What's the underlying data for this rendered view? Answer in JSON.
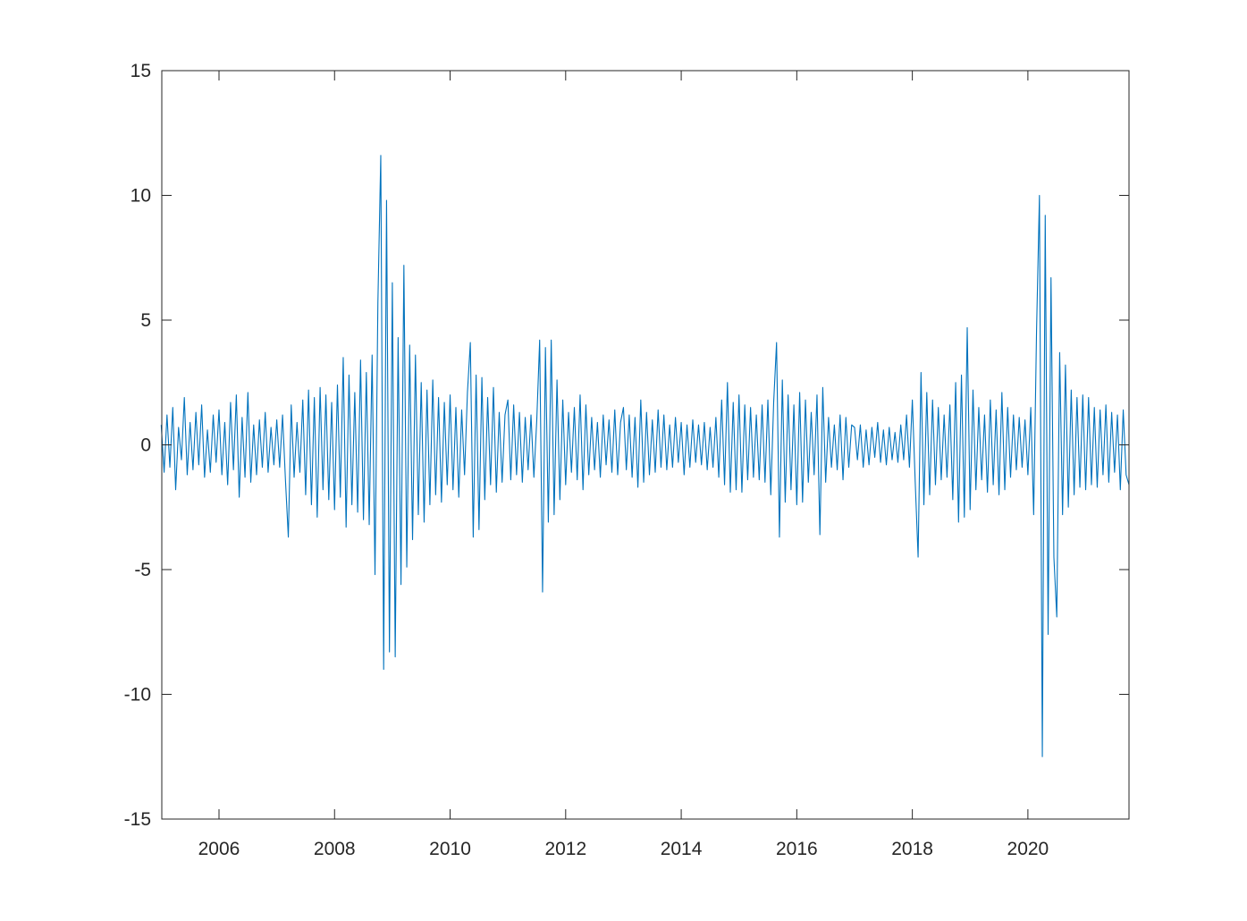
{
  "chart_data": {
    "type": "line",
    "x": [
      2005,
      2005.05,
      2005.1,
      2005.15,
      2005.2,
      2005.25,
      2005.3,
      2005.35,
      2005.4,
      2005.45,
      2005.5,
      2005.55,
      2005.6,
      2005.65,
      2005.7,
      2005.75,
      2005.8,
      2005.85,
      2005.9,
      2005.95,
      2006,
      2006.05,
      2006.1,
      2006.15,
      2006.2,
      2006.25,
      2006.3,
      2006.35,
      2006.4,
      2006.45,
      2006.5,
      2006.55,
      2006.6,
      2006.65,
      2006.7,
      2006.75,
      2006.8,
      2006.85,
      2006.9,
      2006.95,
      2007,
      2007.05,
      2007.1,
      2007.15,
      2007.2,
      2007.25,
      2007.3,
      2007.35,
      2007.4,
      2007.45,
      2007.5,
      2007.55,
      2007.6,
      2007.65,
      2007.7,
      2007.75,
      2007.8,
      2007.85,
      2007.9,
      2007.95,
      2008,
      2008.05,
      2008.1,
      2008.15,
      2008.2,
      2008.25,
      2008.3,
      2008.35,
      2008.4,
      2008.45,
      2008.5,
      2008.55,
      2008.6,
      2008.65,
      2008.7,
      2008.75,
      2008.8,
      2008.85,
      2008.9,
      2008.95,
      2009,
      2009.05,
      2009.1,
      2009.15,
      2009.2,
      2009.25,
      2009.3,
      2009.35,
      2009.4,
      2009.45,
      2009.5,
      2009.55,
      2009.6,
      2009.65,
      2009.7,
      2009.75,
      2009.8,
      2009.85,
      2009.9,
      2009.95,
      2010,
      2010.05,
      2010.1,
      2010.15,
      2010.2,
      2010.25,
      2010.3,
      2010.35,
      2010.4,
      2010.45,
      2010.5,
      2010.55,
      2010.6,
      2010.65,
      2010.7,
      2010.75,
      2010.8,
      2010.85,
      2010.9,
      2010.95,
      2011,
      2011.05,
      2011.1,
      2011.15,
      2011.2,
      2011.25,
      2011.3,
      2011.35,
      2011.4,
      2011.45,
      2011.5,
      2011.55,
      2011.6,
      2011.65,
      2011.7,
      2011.75,
      2011.8,
      2011.85,
      2011.9,
      2011.95,
      2012,
      2012.05,
      2012.1,
      2012.15,
      2012.2,
      2012.25,
      2012.3,
      2012.35,
      2012.4,
      2012.45,
      2012.5,
      2012.55,
      2012.6,
      2012.65,
      2012.7,
      2012.75,
      2012.8,
      2012.85,
      2012.9,
      2012.95,
      2013,
      2013.05,
      2013.1,
      2013.15,
      2013.2,
      2013.25,
      2013.3,
      2013.35,
      2013.4,
      2013.45,
      2013.5,
      2013.55,
      2013.6,
      2013.65,
      2013.7,
      2013.75,
      2013.8,
      2013.85,
      2013.9,
      2013.95,
      2014,
      2014.05,
      2014.1,
      2014.15,
      2014.2,
      2014.25,
      2014.3,
      2014.35,
      2014.4,
      2014.45,
      2014.5,
      2014.55,
      2014.6,
      2014.65,
      2014.7,
      2014.75,
      2014.8,
      2014.85,
      2014.9,
      2014.95,
      2015,
      2015.05,
      2015.1,
      2015.15,
      2015.2,
      2015.25,
      2015.3,
      2015.35,
      2015.4,
      2015.45,
      2015.5,
      2015.55,
      2015.6,
      2015.65,
      2015.7,
      2015.75,
      2015.8,
      2015.85,
      2015.9,
      2015.95,
      2016,
      2016.05,
      2016.1,
      2016.15,
      2016.2,
      2016.25,
      2016.3,
      2016.35,
      2016.4,
      2016.45,
      2016.5,
      2016.55,
      2016.6,
      2016.65,
      2016.7,
      2016.75,
      2016.8,
      2016.85,
      2016.9,
      2016.95,
      2017,
      2017.05,
      2017.1,
      2017.15,
      2017.2,
      2017.25,
      2017.3,
      2017.35,
      2017.4,
      2017.45,
      2017.5,
      2017.55,
      2017.6,
      2017.65,
      2017.7,
      2017.75,
      2017.8,
      2017.85,
      2017.9,
      2017.95,
      2018,
      2018.05,
      2018.1,
      2018.15,
      2018.2,
      2018.25,
      2018.3,
      2018.35,
      2018.4,
      2018.45,
      2018.5,
      2018.55,
      2018.6,
      2018.65,
      2018.7,
      2018.75,
      2018.8,
      2018.85,
      2018.9,
      2018.95,
      2019,
      2019.05,
      2019.1,
      2019.15,
      2019.2,
      2019.25,
      2019.3,
      2019.35,
      2019.4,
      2019.45,
      2019.5,
      2019.55,
      2019.6,
      2019.65,
      2019.7,
      2019.75,
      2019.8,
      2019.85,
      2019.9,
      2019.95,
      2020,
      2020.05,
      2020.1,
      2020.15,
      2020.2,
      2020.25,
      2020.3,
      2020.35,
      2020.4,
      2020.45,
      2020.5,
      2020.55,
      2020.6,
      2020.65,
      2020.7,
      2020.75,
      2020.8,
      2020.85,
      2020.9,
      2020.95,
      2021,
      2021.05,
      2021.1,
      2021.15,
      2021.2,
      2021.25,
      2021.3,
      2021.35,
      2021.4,
      2021.45,
      2021.5,
      2021.55,
      2021.6,
      2021.65,
      2021.7,
      2021.75
    ],
    "series": [
      {
        "color": "#0072bd",
        "values": [
          0.8,
          -1.1,
          1.2,
          -0.9,
          1.5,
          -1.8,
          0.7,
          -0.6,
          1.9,
          -1.2,
          0.9,
          -1.0,
          1.3,
          -0.8,
          1.6,
          -1.3,
          0.6,
          -1.1,
          1.2,
          -0.7,
          1.4,
          -1.2,
          0.9,
          -1.6,
          1.7,
          -1.0,
          2.0,
          -2.1,
          1.1,
          -1.3,
          2.1,
          -1.5,
          0.8,
          -1.2,
          1.0,
          -0.9,
          1.3,
          -1.1,
          0.7,
          -0.8,
          1.0,
          -0.9,
          1.2,
          -1.4,
          -3.7,
          1.6,
          -1.3,
          0.9,
          -1.1,
          1.8,
          -2.0,
          2.2,
          -2.4,
          1.9,
          -2.9,
          2.3,
          -1.8,
          2.0,
          -2.2,
          1.7,
          -2.6,
          2.4,
          -2.1,
          3.5,
          -3.3,
          2.8,
          -2.4,
          2.1,
          -2.7,
          3.4,
          -3.0,
          2.9,
          -3.2,
          3.6,
          -5.2,
          5.7,
          11.6,
          -9.0,
          9.8,
          -8.3,
          6.5,
          -8.5,
          4.3,
          -5.6,
          7.2,
          -4.9,
          4.0,
          -3.8,
          3.6,
          -2.8,
          2.5,
          -3.1,
          2.2,
          -2.4,
          2.6,
          -2.0,
          1.9,
          -2.3,
          1.7,
          -1.6,
          2.0,
          -1.8,
          1.5,
          -2.1,
          1.4,
          -1.2,
          2.1,
          4.1,
          -3.7,
          2.8,
          -3.4,
          2.7,
          -2.2,
          1.9,
          -1.6,
          2.3,
          -1.9,
          1.3,
          -1.5,
          1.2,
          1.8,
          -1.4,
          1.6,
          -1.2,
          1.3,
          -1.5,
          1.1,
          -1.0,
          1.2,
          -1.3,
          1.0,
          4.2,
          -5.9,
          3.9,
          -3.1,
          4.2,
          -2.8,
          2.6,
          -2.2,
          1.8,
          -1.6,
          1.3,
          -1.1,
          1.5,
          -1.4,
          2.0,
          -1.8,
          1.6,
          -1.2,
          1.1,
          -1.0,
          0.9,
          -1.3,
          1.2,
          -0.8,
          1.0,
          -1.1,
          1.4,
          -1.2,
          0.9,
          1.5,
          -1.0,
          1.2,
          -1.3,
          1.1,
          -1.7,
          1.8,
          -1.5,
          1.3,
          -1.2,
          1.0,
          -1.1,
          1.4,
          -0.9,
          1.2,
          -1.0,
          0.8,
          -0.9,
          1.1,
          -0.7,
          0.9,
          -1.2,
          0.8,
          -0.9,
          1.0,
          -0.7,
          0.8,
          -0.8,
          0.9,
          -1.0,
          0.7,
          -0.9,
          1.1,
          -1.3,
          1.8,
          -1.6,
          2.5,
          -1.9,
          1.7,
          -1.8,
          2.0,
          -1.9,
          1.6,
          -1.4,
          1.5,
          -1.3,
          1.2,
          -1.4,
          1.6,
          -1.5,
          1.8,
          -2.0,
          1.7,
          4.1,
          -3.7,
          2.6,
          -2.3,
          2.0,
          -1.8,
          1.6,
          -2.4,
          2.1,
          -2.3,
          1.8,
          -1.5,
          1.3,
          -1.2,
          2.0,
          -3.6,
          2.3,
          -1.5,
          1.1,
          -0.9,
          0.8,
          -1.0,
          1.2,
          -1.4,
          1.1,
          -0.9,
          0.8,
          0.7,
          -0.6,
          0.8,
          -0.9,
          0.6,
          -0.8,
          0.7,
          -0.5,
          0.9,
          -0.7,
          0.6,
          -0.8,
          0.7,
          -0.6,
          0.5,
          -0.7,
          0.8,
          -0.6,
          1.2,
          -0.9,
          1.8,
          -1.5,
          -4.5,
          2.9,
          -2.4,
          2.1,
          -2.0,
          1.8,
          -1.6,
          1.5,
          -1.4,
          1.2,
          -1.3,
          1.6,
          -2.2,
          2.5,
          -3.1,
          2.8,
          -2.9,
          4.7,
          -2.6,
          2.2,
          -1.8,
          1.5,
          -1.4,
          1.2,
          -1.9,
          1.8,
          -1.6,
          1.4,
          -2.0,
          2.1,
          -1.8,
          1.5,
          -1.3,
          1.2,
          -1.0,
          1.1,
          -0.9,
          1.0,
          -1.2,
          1.5,
          -2.8,
          4.6,
          10.0,
          -12.5,
          9.2,
          -7.6,
          6.7,
          -4.5,
          -6.9,
          3.7,
          -2.8,
          3.2,
          -2.5,
          2.2,
          -2.0,
          1.9,
          -1.7,
          2.0,
          -1.8,
          1.9,
          -1.6,
          1.5,
          -1.7,
          1.4,
          -1.2,
          1.6,
          -1.5,
          1.3,
          -1.1,
          1.2,
          -1.8,
          1.4,
          -1.2,
          -1.6
        ]
      }
    ],
    "xlim": [
      2005.01,
      2021.75
    ],
    "xticks": [
      2006,
      2008,
      2010,
      2012,
      2014,
      2016,
      2018,
      2020
    ],
    "ylim": [
      -15,
      15
    ],
    "yticks": [
      -15,
      -10,
      -5,
      0,
      5,
      10,
      15
    ]
  }
}
